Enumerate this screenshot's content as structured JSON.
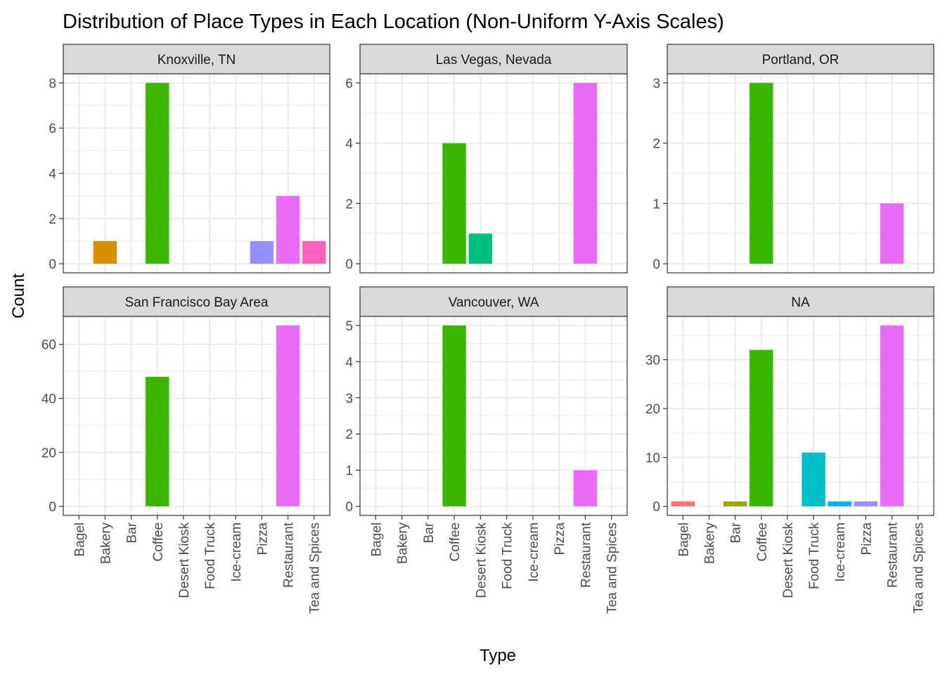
{
  "chart_data": {
    "type": "bar",
    "title": "Distribution of Place Types in Each Location (Non-Uniform Y-Axis Scales)",
    "xlabel": "Type",
    "ylabel": "Count",
    "categories": [
      "Bagel",
      "Bakery",
      "Bar",
      "Coffee",
      "Desert Kiosk",
      "Food Truck",
      "Ice-cream",
      "Pizza",
      "Restaurant",
      "Tea and Spices"
    ],
    "colors": {
      "Bagel": "#F8766D",
      "Bakery": "#D89000",
      "Bar": "#A3A500",
      "Coffee": "#39B600",
      "Desert Kiosk": "#00BF7D",
      "Food Truck": "#00BFC4",
      "Ice-cream": "#00B0F6",
      "Pizza": "#9590FF",
      "Restaurant": "#E76BF3",
      "Tea and Spices": "#FF62BC"
    },
    "grid": true,
    "facets": [
      {
        "name": "Knoxville, TN",
        "ylim": [
          0,
          8.4
        ],
        "yticks": [
          0,
          2,
          4,
          6,
          8
        ],
        "values": [
          0,
          1,
          0,
          8,
          0,
          0,
          0,
          1,
          3,
          1
        ]
      },
      {
        "name": "Las Vegas, Nevada",
        "ylim": [
          0,
          6.3
        ],
        "yticks": [
          0,
          2,
          4,
          6
        ],
        "values": [
          0,
          0,
          0,
          4,
          1,
          0,
          0,
          0,
          6,
          0
        ]
      },
      {
        "name": "Portland, OR",
        "ylim": [
          0,
          3.15
        ],
        "yticks": [
          0,
          1,
          2,
          3
        ],
        "values": [
          0,
          0,
          0,
          3,
          0,
          0,
          0,
          0,
          1,
          0
        ]
      },
      {
        "name": "San Francisco Bay Area",
        "ylim": [
          0,
          70.35
        ],
        "yticks": [
          0,
          20,
          40,
          60
        ],
        "values": [
          0,
          0,
          0,
          48,
          0,
          0,
          0,
          0,
          67,
          0
        ]
      },
      {
        "name": "Vancouver, WA",
        "ylim": [
          0,
          5.25
        ],
        "yticks": [
          0,
          1,
          2,
          3,
          4,
          5
        ],
        "values": [
          0,
          0,
          0,
          5,
          0,
          0,
          0,
          0,
          1,
          0
        ]
      },
      {
        "name": "NA",
        "ylim": [
          0,
          38.85
        ],
        "yticks": [
          0,
          10,
          20,
          30
        ],
        "values": [
          1,
          0,
          1,
          32,
          0,
          11,
          1,
          1,
          37,
          0
        ]
      }
    ]
  }
}
